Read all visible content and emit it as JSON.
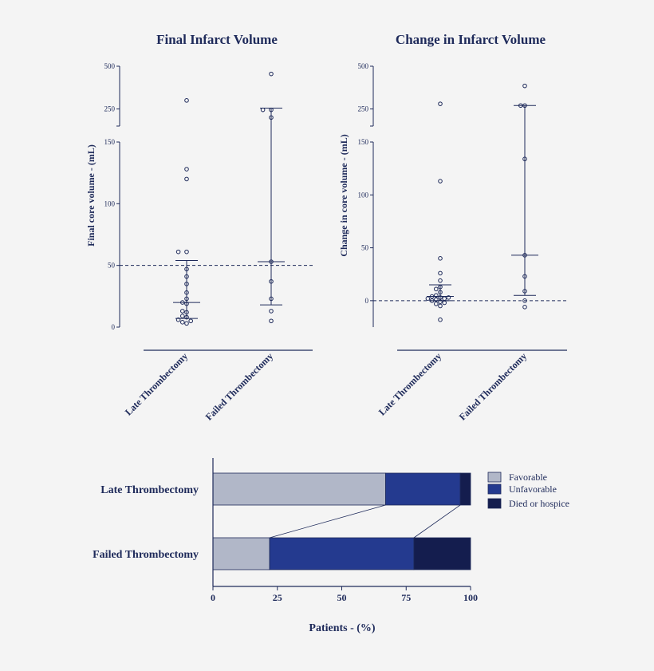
{
  "colors": {
    "ink": "#1e2a5a",
    "favorable": "#b1b7c8",
    "unfavorable": "#243a8f",
    "died": "#141d4e",
    "background": "#f4f4f4"
  },
  "chart_data": [
    {
      "type": "scatter",
      "title": "Final Infarct Volume",
      "ylabel": "Final core volume - (mL)",
      "categories": [
        "Late Thrombectomy",
        "Failed Thrombectomy"
      ],
      "y_axis_broken": true,
      "lower_ylim": [
        0,
        150
      ],
      "lower_ticks": [
        0,
        50,
        100,
        150
      ],
      "upper_ylim": [
        150,
        500
      ],
      "upper_ticks": [
        250,
        500
      ],
      "reference_line": 50,
      "series": [
        {
          "category": "Late Thrombectomy",
          "points": [
            3,
            4,
            5,
            6,
            8,
            9,
            12,
            13,
            19,
            20,
            23,
            28,
            35,
            41,
            47,
            61,
            61,
            120,
            128,
            300
          ],
          "median": 20,
          "iqr": [
            7,
            54
          ]
        },
        {
          "category": "Failed Thrombectomy",
          "points": [
            5,
            13,
            23,
            37,
            53,
            200,
            245,
            245,
            455
          ],
          "median": 53,
          "iqr": [
            18,
            255
          ]
        }
      ]
    },
    {
      "type": "scatter",
      "title": "Change in Infarct Volume",
      "ylabel": "Change in core volume - (mL)",
      "categories": [
        "Late Thrombectomy",
        "Failed Thrombectomy"
      ],
      "y_axis_broken": true,
      "lower_ylim": [
        -25,
        150
      ],
      "lower_ticks": [
        0,
        50,
        100,
        150
      ],
      "upper_ylim": [
        150,
        500
      ],
      "upper_ticks": [
        250,
        500
      ],
      "reference_line": 0,
      "series": [
        {
          "category": "Late Thrombectomy",
          "points": [
            -18,
            -5,
            -3,
            -2,
            -1,
            0,
            1,
            2,
            2,
            3,
            3,
            4,
            5,
            8,
            11,
            13,
            19,
            26,
            40,
            113,
            280
          ],
          "median": 4,
          "iqr": [
            0,
            15
          ]
        },
        {
          "category": "Failed Thrombectomy",
          "points": [
            -6,
            0,
            9,
            23,
            43,
            134,
            270,
            270,
            385
          ],
          "median": 43,
          "iqr": [
            5,
            270
          ]
        }
      ]
    },
    {
      "type": "bar",
      "orientation": "horizontal",
      "stacked": true,
      "categories": [
        "Late Thrombectomy",
        "Failed Thrombectomy"
      ],
      "series": [
        {
          "name": "Favorable",
          "values": [
            67,
            22
          ]
        },
        {
          "name": "Unfavorable",
          "values": [
            29,
            56
          ]
        },
        {
          "name": "Died or hospice",
          "values": [
            4,
            22
          ]
        }
      ],
      "xlabel": "Patients - (%)",
      "xlim": [
        0,
        100
      ],
      "xticks": [
        0,
        25,
        50,
        75,
        100
      ],
      "legend": "top-right"
    }
  ]
}
